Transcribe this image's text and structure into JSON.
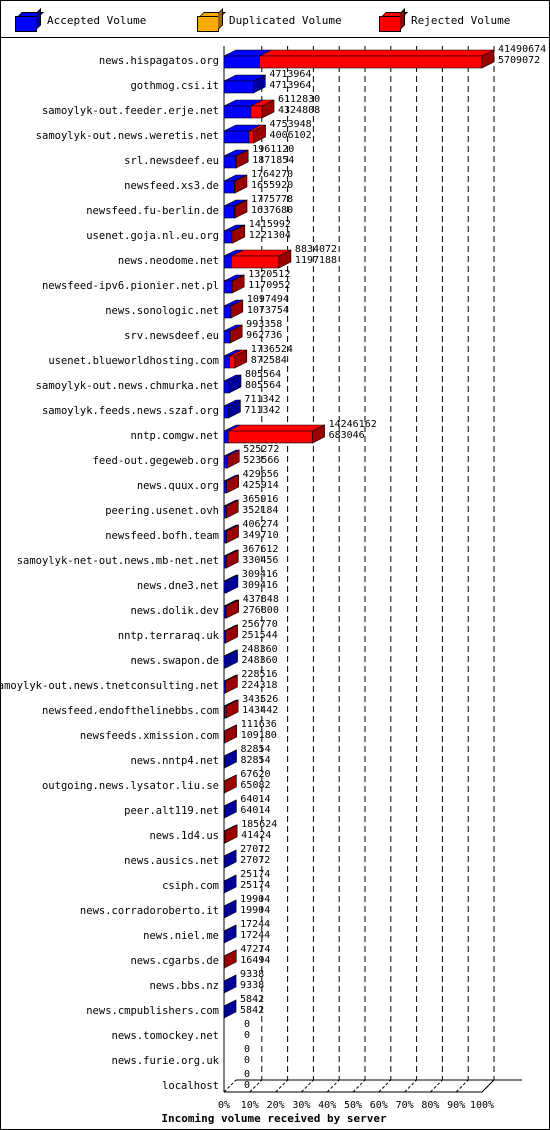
{
  "legend": {
    "accepted": "Accepted Volume",
    "duplicated": "Duplicated Volume",
    "rejected": "Rejected Volume"
  },
  "colors": {
    "accepted": "#0000ff",
    "duplicated": "#ffaa00",
    "rejected": "#ff0000"
  },
  "chart_data": {
    "type": "bar",
    "orientation": "horizontal",
    "stacked": true,
    "title": "",
    "xlabel": "Incoming volume received by server",
    "ylabel": "",
    "xlim": [
      0,
      100
    ],
    "x_unit": "%",
    "xticks": [
      "0%",
      "10%",
      "20%",
      "30%",
      "40%",
      "50%",
      "60%",
      "70%",
      "80%",
      "90%",
      "100%"
    ],
    "grid": true,
    "categories": [
      "news.hispagatos.org",
      "gothmog.csi.it",
      "samoylyk-out.feeder.erje.net",
      "samoylyk-out.news.weretis.net",
      "srl.newsdeef.eu",
      "newsfeed.xs3.de",
      "newsfeed.fu-berlin.de",
      "usenet.goja.nl.eu.org",
      "news.neodome.net",
      "newsfeed-ipv6.pionier.net.pl",
      "news.sonologic.net",
      "srv.newsdeef.eu",
      "usenet.blueworldhosting.com",
      "samoylyk-out.news.chmurka.net",
      "samoylyk.feeds.news.szaf.org",
      "nntp.comgw.net",
      "feed-out.gegeweb.org",
      "news.quux.org",
      "peering.usenet.ovh",
      "newsfeed.bofh.team",
      "samoylyk-net-out.news.mb-net.net",
      "news.dne3.net",
      "news.dolik.dev",
      "nntp.terraraq.uk",
      "news.swapon.de",
      "samoylyk-out.news.tnetconsulting.net",
      "newsfeed.endofthelinebbs.com",
      "newsfeeds.xmission.com",
      "news.nntp4.net",
      "outgoing.news.lysator.liu.se",
      "peer.alt119.net",
      "news.1d4.us",
      "news.ausics.net",
      "csiph.com",
      "news.corradoroberto.it",
      "news.niel.me",
      "news.cgarbs.de",
      "news.bbs.nz",
      "news.cmpublishers.com",
      "news.tomockey.net",
      "news.furie.org.uk",
      "localhost"
    ],
    "total_volume": [
      41490674,
      4713964,
      6112830,
      4753948,
      1961120,
      1764270,
      1775778,
      1415992,
      8834072,
      1320512,
      1097494,
      993358,
      1736524,
      805564,
      711342,
      14246162,
      525272,
      429656,
      365916,
      406274,
      367612,
      309416,
      437848,
      256770,
      248360,
      228516,
      343526,
      111636,
      82854,
      67620,
      64014,
      185624,
      27072,
      25174,
      19904,
      17244,
      47274,
      9338,
      5842,
      0,
      0,
      0
    ],
    "accepted_volume": [
      5709072,
      4713964,
      4324808,
      4006102,
      1871854,
      1655920,
      1637680,
      1221304,
      1197188,
      1170952,
      1073754,
      962736,
      872584,
      805564,
      711342,
      683046,
      523566,
      425914,
      352184,
      349710,
      330456,
      309416,
      276800,
      251544,
      248360,
      224318,
      143442,
      109180,
      82854,
      65082,
      64014,
      41424,
      27072,
      25174,
      19904,
      17244,
      16494,
      9338,
      5842,
      0,
      0,
      0
    ],
    "duplicated_volume": [
      0,
      0,
      0,
      0,
      0,
      0,
      0,
      0,
      0,
      0,
      0,
      0,
      0,
      0,
      0,
      0,
      0,
      0,
      0,
      0,
      0,
      0,
      0,
      0,
      0,
      0,
      0,
      0,
      0,
      0,
      0,
      0,
      0,
      0,
      0,
      0,
      0,
      0,
      0,
      0,
      0,
      0
    ],
    "series": [
      {
        "name": "Accepted Volume",
        "values_key": "accepted_volume"
      },
      {
        "name": "Duplicated Volume",
        "values_key": "duplicated_volume"
      },
      {
        "name": "Rejected Volume",
        "values_key": "rejected"
      }
    ]
  }
}
